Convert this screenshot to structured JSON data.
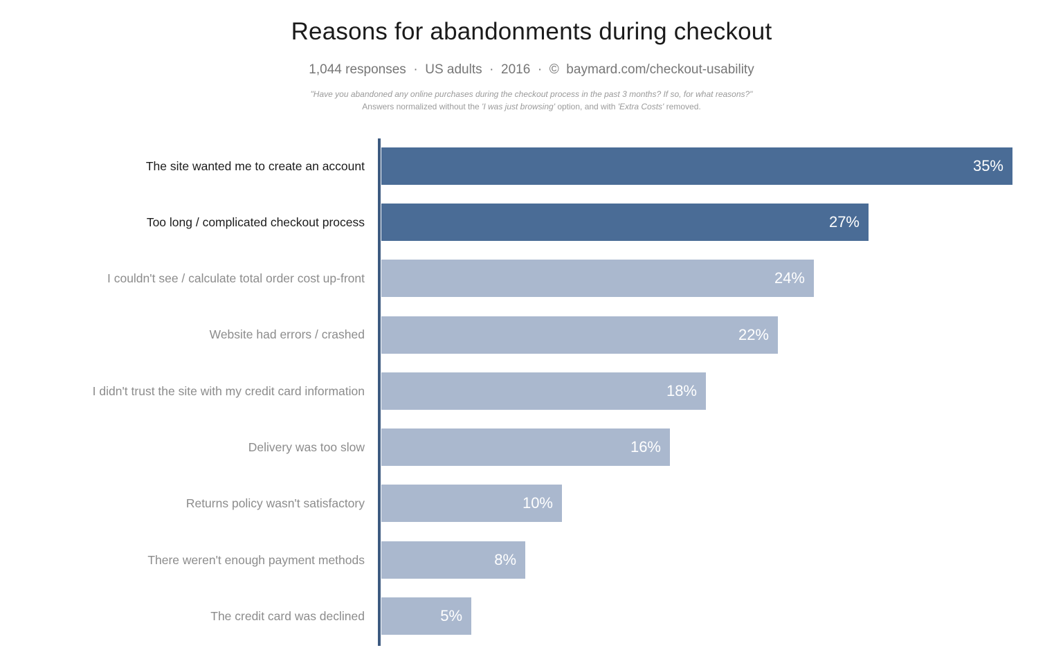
{
  "header": {
    "title": "Reasons for abandonments during checkout",
    "subtitle": "1,044 responses  ·  US adults  ·  2016  ·  ©  baymard.com/checkout-usability",
    "note_line1": "\"Have you abandoned any online purchases during the checkout process in the past 3 months? If so, for what reasons?\"",
    "note_line2_segments": [
      {
        "text": "Answers normalized without the ",
        "italic": false
      },
      {
        "text": "'I was just browsing'",
        "italic": true
      },
      {
        "text": " option, and with ",
        "italic": false
      },
      {
        "text": "'Extra Costs'",
        "italic": true
      },
      {
        "text": " removed.",
        "italic": false
      }
    ]
  },
  "chart_data": {
    "type": "bar",
    "orientation": "horizontal",
    "title": "Reasons for abandonments during checkout",
    "categories": [
      "The site wanted me to create an account",
      "Too long / complicated checkout process",
      "I couldn't see / calculate total order cost up-front",
      "Website had errors / crashed",
      "I didn't trust the site with my credit card information",
      "Delivery was too slow",
      "Returns policy wasn't satisfactory",
      "There weren't enough payment methods",
      "The credit card was declined"
    ],
    "values": [
      35,
      27,
      24,
      22,
      18,
      16,
      10,
      8,
      5
    ],
    "value_labels": [
      "35%",
      "27%",
      "24%",
      "22%",
      "18%",
      "16%",
      "10%",
      "8%",
      "5%"
    ],
    "unit": "%",
    "xlim": [
      0,
      35
    ],
    "grid": false,
    "legend": false,
    "highlighted_categories": 2,
    "colors": {
      "bar_highlight": "#4a6c96",
      "bar_normal": "#aab8ce",
      "axis_line": "#3d5a80",
      "value_label_text": "#ffffff",
      "category_label_highlight": "#1c1c1c",
      "category_label_normal": "#8c8c8c"
    }
  }
}
